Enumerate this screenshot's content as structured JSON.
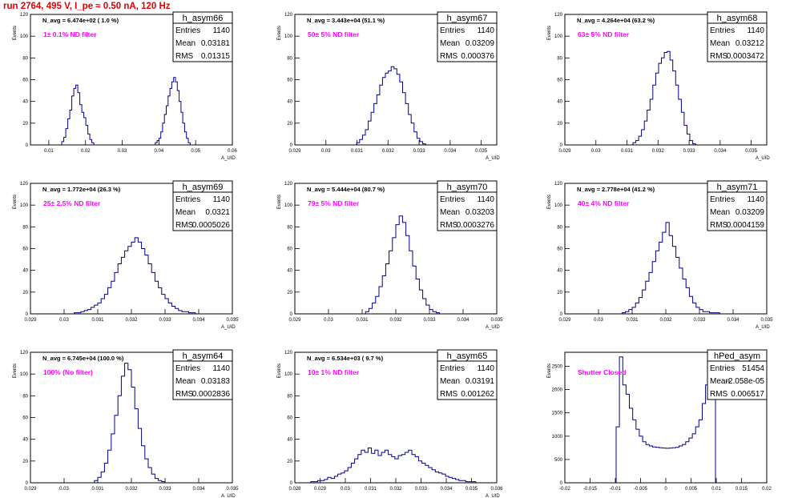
{
  "run_title": "run 2764,   495 V, I_pe ≈ 0.50 nA, 120 Hz",
  "colors": {
    "histogram": "#00008b",
    "filter_label": "#ff00ff",
    "title": "#e00000",
    "axes": "#000000"
  },
  "chart_data": [
    {
      "type": "histogram",
      "stats": {
        "name": "h_asym66",
        "entries": "1140",
        "mean": "0.03181",
        "rms": "0.01315"
      },
      "navg_text": "N_avg = 6.474e+02 ( 1.0 %)",
      "filter_text": "1± 0.1% ND filter",
      "ylabel": "Events",
      "xlabel": "A_UID",
      "xlim": [
        0.005,
        0.06
      ],
      "ylim": [
        0,
        120
      ],
      "xticks": [
        "0.01",
        "0.02",
        "0.03",
        "0.04",
        "0.05",
        "0.06"
      ],
      "xticks_values": [
        0.01,
        0.02,
        0.03,
        0.04,
        0.05,
        0.06
      ],
      "yticks": [
        "20",
        "40",
        "60",
        "80",
        "100",
        "120"
      ],
      "yticks_values": [
        20,
        40,
        60,
        80,
        100,
        120
      ],
      "bins": [
        {
          "lo": 0.013,
          "hi": 0.0228,
          "values": [
            0,
            3,
            7,
            15,
            24,
            32,
            45,
            52,
            55,
            48,
            37,
            30,
            25,
            18,
            10,
            5,
            2,
            0
          ]
        },
        {
          "lo": 0.0385,
          "hi": 0.049,
          "values": [
            0,
            2,
            4,
            6,
            12,
            20,
            28,
            36,
            45,
            52,
            58,
            62,
            58,
            50,
            40,
            30,
            20,
            12,
            6,
            2,
            0
          ]
        }
      ]
    },
    {
      "type": "histogram",
      "stats": {
        "name": "h_asym67",
        "entries": "1140",
        "mean": "0.03209",
        "rms": "0.000376"
      },
      "navg_text": "N_avg = 3.443e+04 (51.1 %)",
      "filter_text": "50± 5% ND filter",
      "ylabel": "Events",
      "xlabel": "A_UID",
      "xlim": [
        0.029,
        0.0355
      ],
      "ylim": [
        0,
        120
      ],
      "xticks": [
        "0.029",
        "0.03",
        "0.031",
        "0.032",
        "0.033",
        "0.034",
        "0.035"
      ],
      "xticks_values": [
        0.029,
        0.03,
        0.031,
        0.032,
        0.033,
        0.034,
        0.035
      ],
      "yticks": [
        "20",
        "40",
        "60",
        "80",
        "100",
        "120"
      ],
      "yticks_values": [
        20,
        40,
        60,
        80,
        100,
        120
      ],
      "bins": [
        {
          "lo": 0.0309,
          "hi": 0.0333,
          "values": [
            0,
            2,
            5,
            9,
            14,
            22,
            30,
            38,
            46,
            55,
            62,
            66,
            68,
            72,
            70,
            65,
            58,
            48,
            38,
            28,
            20,
            12,
            6,
            3,
            1,
            0
          ]
        }
      ]
    },
    {
      "type": "histogram",
      "stats": {
        "name": "h_asym68",
        "entries": "1140",
        "mean": "0.03212",
        "rms": "0.0003472"
      },
      "navg_text": "N_avg = 4.264e+04 (63.2 %)",
      "filter_text": "63± 5% ND filter",
      "ylabel": "Events",
      "xlabel": "A_UID",
      "xlim": [
        0.029,
        0.0355
      ],
      "ylim": [
        0,
        120
      ],
      "xticks": [
        "0.029",
        "0.03",
        "0.031",
        "0.032",
        "0.033",
        "0.034",
        "0.035"
      ],
      "xticks_values": [
        0.029,
        0.03,
        0.031,
        0.032,
        0.033,
        0.034,
        0.035
      ],
      "yticks": [
        "20",
        "40",
        "60",
        "80",
        "100",
        "120"
      ],
      "yticks_values": [
        20,
        40,
        60,
        80,
        100,
        120
      ],
      "bins": [
        {
          "lo": 0.0311,
          "hi": 0.0333,
          "values": [
            0,
            2,
            4,
            8,
            14,
            22,
            32,
            42,
            55,
            66,
            75,
            80,
            85,
            86,
            78,
            68,
            55,
            42,
            30,
            18,
            10,
            4,
            1,
            0
          ]
        }
      ]
    },
    {
      "type": "histogram",
      "stats": {
        "name": "h_asym69",
        "entries": "1140",
        "mean": "0.0321",
        "rms": "0.0005026"
      },
      "navg_text": "N_avg = 1.772e+04 (26.3 %)",
      "filter_text": "25± 2.5% ND filter",
      "ylabel": "Events",
      "xlabel": "A_UID",
      "xlim": [
        0.029,
        0.035
      ],
      "ylim": [
        0,
        120
      ],
      "xticks": [
        "0.029",
        "0.03",
        "0.031",
        "0.032",
        "0.033",
        "0.034",
        "0.035"
      ],
      "xticks_values": [
        0.029,
        0.03,
        0.031,
        0.032,
        0.033,
        0.034,
        0.035
      ],
      "yticks": [
        "20",
        "40",
        "60",
        "80",
        "100",
        "120"
      ],
      "yticks_values": [
        20,
        40,
        60,
        80,
        100,
        120
      ],
      "bins": [
        {
          "lo": 0.0302,
          "hi": 0.034,
          "values": [
            0,
            1,
            1,
            2,
            3,
            4,
            6,
            8,
            10,
            14,
            18,
            24,
            30,
            38,
            46,
            52,
            58,
            62,
            66,
            70,
            66,
            60,
            54,
            46,
            38,
            30,
            24,
            18,
            14,
            10,
            7,
            5,
            3,
            2,
            2,
            1,
            1,
            0
          ]
        }
      ]
    },
    {
      "type": "histogram",
      "stats": {
        "name": "h_asym70",
        "entries": "1140",
        "mean": "0.03203",
        "rms": "0.0003276"
      },
      "navg_text": "N_avg = 5.444e+04 (80.7 %)",
      "filter_text": "79± 5% ND filter",
      "ylabel": "Events",
      "xlabel": "A_UID",
      "xlim": [
        0.029,
        0.035
      ],
      "ylim": [
        0,
        120
      ],
      "xticks": [
        "0.029",
        "0.03",
        "0.031",
        "0.032",
        "0.033",
        "0.034",
        "0.035"
      ],
      "xticks_values": [
        0.029,
        0.03,
        0.031,
        0.032,
        0.033,
        0.034,
        0.035
      ],
      "yticks": [
        "20",
        "40",
        "60",
        "80",
        "100",
        "120"
      ],
      "yticks_values": [
        20,
        40,
        60,
        80,
        100,
        120
      ],
      "bins": [
        {
          "lo": 0.031,
          "hi": 0.0334,
          "values": [
            0,
            2,
            5,
            10,
            16,
            25,
            35,
            46,
            58,
            70,
            82,
            90,
            84,
            72,
            58,
            44,
            32,
            22,
            14,
            8,
            4,
            2,
            1,
            0
          ]
        }
      ]
    },
    {
      "type": "histogram",
      "stats": {
        "name": "h_asym71",
        "entries": "1140",
        "mean": "0.03209",
        "rms": "0.0004159"
      },
      "navg_text": "N_avg = 2.778e+04 (41.2 %)",
      "filter_text": "40± 4% ND filter",
      "ylabel": "Events",
      "xlabel": "A_UID",
      "xlim": [
        0.029,
        0.035
      ],
      "ylim": [
        0,
        120
      ],
      "xticks": [
        "0.029",
        "0.03",
        "0.031",
        "0.032",
        "0.033",
        "0.034",
        "0.035"
      ],
      "xticks_values": [
        0.029,
        0.03,
        0.031,
        0.032,
        0.033,
        0.034,
        0.035
      ],
      "yticks": [
        "20",
        "40",
        "60",
        "80",
        "100",
        "120"
      ],
      "yticks_values": [
        20,
        40,
        60,
        80,
        100,
        120
      ],
      "bins": [
        {
          "lo": 0.0306,
          "hi": 0.0337,
          "values": [
            0,
            1,
            2,
            4,
            6,
            10,
            15,
            22,
            30,
            38,
            48,
            58,
            66,
            75,
            84,
            72,
            62,
            52,
            42,
            32,
            24,
            16,
            10,
            6,
            4,
            2,
            2,
            1,
            1,
            1,
            0
          ]
        }
      ]
    },
    {
      "type": "histogram",
      "stats": {
        "name": "h_asym64",
        "entries": "1140",
        "mean": "0.03183",
        "rms": "0.0002836"
      },
      "navg_text": "N_avg = 6.745e+04 (100.0 %)",
      "filter_text": "100% (No filter)",
      "ylabel": "Events",
      "xlabel": "A_UID",
      "xlim": [
        0.029,
        0.035
      ],
      "ylim": [
        0,
        120
      ],
      "xticks": [
        "0.029",
        "0.03",
        "0.031",
        "0.032",
        "0.033",
        "0.034",
        "0.035"
      ],
      "xticks_values": [
        0.029,
        0.03,
        0.031,
        0.032,
        0.033,
        0.034,
        0.035
      ],
      "yticks": [
        "20",
        "40",
        "60",
        "80",
        "100",
        "120"
      ],
      "yticks_values": [
        20,
        40,
        60,
        80,
        100,
        120
      ],
      "bins": [
        {
          "lo": 0.0308,
          "hi": 0.0331,
          "values": [
            0,
            2,
            5,
            10,
            18,
            30,
            45,
            62,
            80,
            98,
            110,
            104,
            88,
            68,
            50,
            34,
            22,
            14,
            8,
            4,
            2,
            1,
            0
          ]
        }
      ]
    },
    {
      "type": "histogram",
      "stats": {
        "name": "h_asym65",
        "entries": "1140",
        "mean": "0.03191",
        "rms": "0.001262"
      },
      "navg_text": "N_avg = 6.534e+03 ( 9.7 %)",
      "filter_text": "10± 1% ND filter",
      "ylabel": "Events",
      "xlabel": "A_UID",
      "xlim": [
        0.028,
        0.036
      ],
      "ylim": [
        0,
        120
      ],
      "xticks": [
        "0.028",
        "0.029",
        "0.03",
        "0.031",
        "0.032",
        "0.033",
        "0.034",
        "0.035",
        "0.036"
      ],
      "xticks_values": [
        0.028,
        0.029,
        0.03,
        0.031,
        0.032,
        0.033,
        0.034,
        0.035,
        0.036
      ],
      "yticks": [
        "20",
        "40",
        "60",
        "80",
        "100",
        "120"
      ],
      "yticks_values": [
        20,
        40,
        60,
        80,
        100,
        120
      ],
      "bins": [
        {
          "lo": 0.0285,
          "hi": 0.0353,
          "values": [
            0,
            1,
            1,
            2,
            2,
            3,
            5,
            4,
            6,
            8,
            9,
            11,
            14,
            18,
            22,
            26,
            30,
            28,
            32,
            27,
            30,
            25,
            28,
            30,
            26,
            24,
            22,
            25,
            26,
            28,
            30,
            26,
            24,
            20,
            18,
            16,
            14,
            12,
            10,
            9,
            8,
            6,
            5,
            4,
            3,
            2,
            2,
            1,
            1,
            1,
            0
          ]
        }
      ]
    },
    {
      "type": "histogram",
      "stats": {
        "name": "hPed_asym",
        "entries": "51454",
        "mean": "-2.058e-05",
        "rms": "0.006517"
      },
      "navg_text": "",
      "filter_text": "Shutter Closed",
      "ylabel": "Events",
      "xlabel": "",
      "xlim": [
        -0.02,
        0.02
      ],
      "ylim": [
        0,
        2800
      ],
      "xticks": [
        "-0.02",
        "-0.015",
        "-0.01",
        "-0.005",
        "0",
        "0.005",
        "0.01",
        "0.015",
        "0.02"
      ],
      "xticks_values": [
        -0.02,
        -0.015,
        -0.01,
        -0.005,
        0,
        0.005,
        0.01,
        0.015,
        0.02
      ],
      "yticks": [
        "500",
        "1000",
        "1500",
        "2000",
        "2500"
      ],
      "yticks_values": [
        500,
        1000,
        1500,
        2000,
        2500
      ],
      "bins": [
        {
          "lo": -0.0105,
          "hi": 0.0105,
          "values": [
            0,
            1200,
            2700,
            2100,
            1900,
            1600,
            1350,
            1150,
            1000,
            880,
            820,
            790,
            770,
            760,
            750,
            745,
            740,
            745,
            750,
            760,
            790,
            820,
            880,
            960,
            1050,
            1200,
            1350,
            1700,
            2100,
            2550,
            2750,
            0
          ]
        }
      ]
    }
  ]
}
